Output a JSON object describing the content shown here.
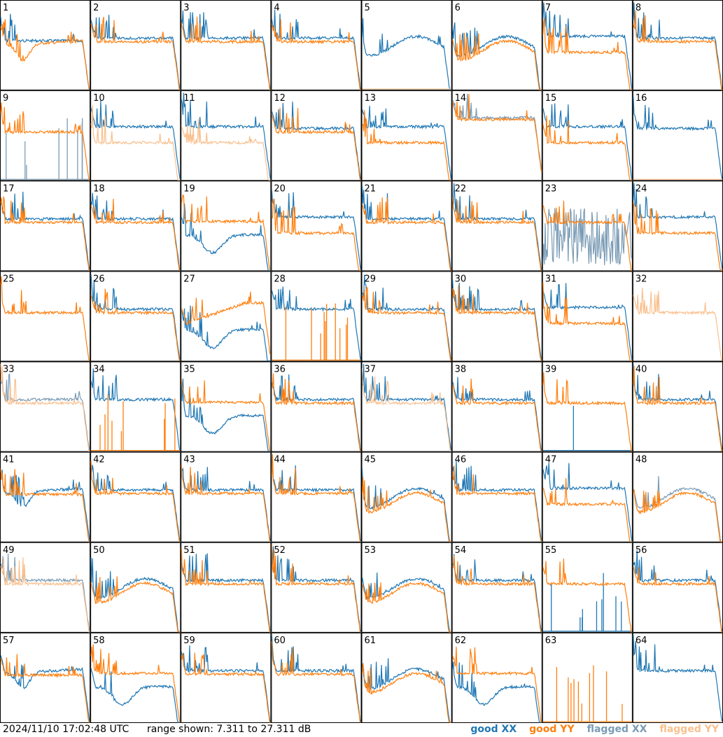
{
  "chart_data": {
    "type": "line",
    "layout": "grid",
    "rows": 8,
    "cols": 8,
    "panels": [
      {
        "label": "1",
        "shape": "dip_low",
        "xx": "good",
        "yy": "good"
      },
      {
        "label": "2",
        "shape": "flat",
        "xx": "good",
        "yy": "good"
      },
      {
        "label": "3",
        "shape": "flat",
        "xx": "good",
        "yy": "good"
      },
      {
        "label": "4",
        "shape": "flat",
        "xx": "good",
        "yy": "good"
      },
      {
        "label": "5",
        "shape": "wave",
        "xx": "good",
        "yy": "flat_zero"
      },
      {
        "label": "6",
        "shape": "wave_low",
        "xx": "good",
        "yy": "good"
      },
      {
        "label": "7",
        "shape": "split",
        "xx": "good",
        "yy": "good"
      },
      {
        "label": "8",
        "shape": "flat",
        "xx": "good",
        "yy": "good"
      },
      {
        "label": "9",
        "shape": "spiky_low",
        "xx": "flagged",
        "yy": "good"
      },
      {
        "label": "10",
        "shape": "split",
        "xx": "good",
        "yy": "flagged"
      },
      {
        "label": "11",
        "shape": "split",
        "xx": "good",
        "yy": "flagged"
      },
      {
        "label": "12",
        "shape": "flat",
        "xx": "good",
        "yy": "good"
      },
      {
        "label": "13",
        "shape": "split",
        "xx": "good",
        "yy": "good"
      },
      {
        "label": "14",
        "shape": "high",
        "xx": "flagged",
        "yy": "good"
      },
      {
        "label": "15",
        "shape": "split",
        "xx": "good",
        "yy": "good"
      },
      {
        "label": "16",
        "shape": "xx_only",
        "xx": "good",
        "yy": "flagged_zero"
      },
      {
        "label": "17",
        "shape": "flat",
        "xx": "good",
        "yy": "good"
      },
      {
        "label": "18",
        "shape": "flat",
        "xx": "good",
        "yy": "good"
      },
      {
        "label": "19",
        "shape": "split_low",
        "xx": "good",
        "yy": "good"
      },
      {
        "label": "20",
        "shape": "split",
        "xx": "good",
        "yy": "good"
      },
      {
        "label": "21",
        "shape": "flat",
        "xx": "good",
        "yy": "good"
      },
      {
        "label": "22",
        "shape": "flat",
        "xx": "good",
        "yy": "good"
      },
      {
        "label": "23",
        "shape": "noisy",
        "xx": "flagged",
        "yy": "good"
      },
      {
        "label": "24",
        "shape": "split",
        "xx": "good",
        "yy": "good"
      },
      {
        "label": "25",
        "shape": "yy_only",
        "xx": "none",
        "yy": "good"
      },
      {
        "label": "26",
        "shape": "flat",
        "xx": "good",
        "yy": "good"
      },
      {
        "label": "27",
        "shape": "rise",
        "xx": "good",
        "yy": "good"
      },
      {
        "label": "28",
        "shape": "spikes_zero",
        "xx": "good",
        "yy": "good"
      },
      {
        "label": "29",
        "shape": "flat",
        "xx": "good",
        "yy": "good"
      },
      {
        "label": "30",
        "shape": "flat",
        "xx": "good",
        "yy": "good"
      },
      {
        "label": "31",
        "shape": "split",
        "xx": "good",
        "yy": "good"
      },
      {
        "label": "32",
        "shape": "yy_only",
        "xx": "none",
        "yy": "flagged"
      },
      {
        "label": "33",
        "shape": "flat",
        "xx": "flagged",
        "yy": "flagged"
      },
      {
        "label": "34",
        "shape": "xx_only",
        "xx": "good",
        "yy": "spikes_zero"
      },
      {
        "label": "35",
        "shape": "split_low",
        "xx": "good",
        "yy": "good"
      },
      {
        "label": "36",
        "shape": "flat",
        "xx": "good",
        "yy": "good"
      },
      {
        "label": "37",
        "shape": "flat",
        "xx": "good",
        "yy": "flagged"
      },
      {
        "label": "38",
        "shape": "flat",
        "xx": "good",
        "yy": "good"
      },
      {
        "label": "39",
        "shape": "yy_only",
        "xx": "zero",
        "yy": "good"
      },
      {
        "label": "40",
        "shape": "flat",
        "xx": "good",
        "yy": "good"
      },
      {
        "label": "41",
        "shape": "dip_mid",
        "xx": "good",
        "yy": "good"
      },
      {
        "label": "42",
        "shape": "flat",
        "xx": "good",
        "yy": "good"
      },
      {
        "label": "43",
        "shape": "flat",
        "xx": "good",
        "yy": "good"
      },
      {
        "label": "44",
        "shape": "flat",
        "xx": "good",
        "yy": "good"
      },
      {
        "label": "45",
        "shape": "wave",
        "xx": "good",
        "yy": "good"
      },
      {
        "label": "46",
        "shape": "flat",
        "xx": "good",
        "yy": "good"
      },
      {
        "label": "47",
        "shape": "split",
        "xx": "good",
        "yy": "good"
      },
      {
        "label": "48",
        "shape": "wave",
        "xx": "flagged",
        "yy": "good"
      },
      {
        "label": "49",
        "shape": "flat",
        "xx": "flagged",
        "yy": "flagged"
      },
      {
        "label": "50",
        "shape": "wave",
        "xx": "good",
        "yy": "good"
      },
      {
        "label": "51",
        "shape": "flat",
        "xx": "good",
        "yy": "good"
      },
      {
        "label": "52",
        "shape": "flat",
        "xx": "good",
        "yy": "good"
      },
      {
        "label": "53",
        "shape": "wave",
        "xx": "good",
        "yy": "good"
      },
      {
        "label": "54",
        "shape": "flat",
        "xx": "good",
        "yy": "good"
      },
      {
        "label": "55",
        "shape": "yy_only",
        "xx": "spikes_zero",
        "yy": "good"
      },
      {
        "label": "56",
        "shape": "flat",
        "xx": "good",
        "yy": "good"
      },
      {
        "label": "57",
        "shape": "dip_mid",
        "xx": "good",
        "yy": "good"
      },
      {
        "label": "58",
        "shape": "split_low",
        "xx": "good",
        "yy": "good"
      },
      {
        "label": "59",
        "shape": "flat",
        "xx": "good",
        "yy": "good"
      },
      {
        "label": "60",
        "shape": "flat",
        "xx": "good",
        "yy": "good"
      },
      {
        "label": "61",
        "shape": "wave",
        "xx": "good",
        "yy": "good"
      },
      {
        "label": "62",
        "shape": "split_low",
        "xx": "good",
        "yy": "good"
      },
      {
        "label": "63",
        "shape": "spikes_zero",
        "xx": "none",
        "yy": "good"
      },
      {
        "label": "64",
        "shape": "xx_only",
        "xx": "good",
        "yy": "flagged_zero"
      }
    ],
    "y_range_db": [
      7.311,
      27.311
    ],
    "grid": false
  },
  "footer": {
    "timestamp": "2024/11/10 17:02:48 UTC",
    "range": "range shown: 7.311 to 27.311 dB"
  },
  "legend": [
    {
      "label": "good XX",
      "color": "#1f77b4"
    },
    {
      "label": "good YY",
      "color": "#ff7f0e"
    },
    {
      "label": "flagged XX",
      "color": "#7a9bb5"
    },
    {
      "label": "flagged YY",
      "color": "#f9c08e"
    }
  ],
  "colors": {
    "good_xx": "#1f77b4",
    "good_yy": "#ff7f0e",
    "flagged_xx": "#7a9bb5",
    "flagged_yy": "#f9c08e"
  }
}
